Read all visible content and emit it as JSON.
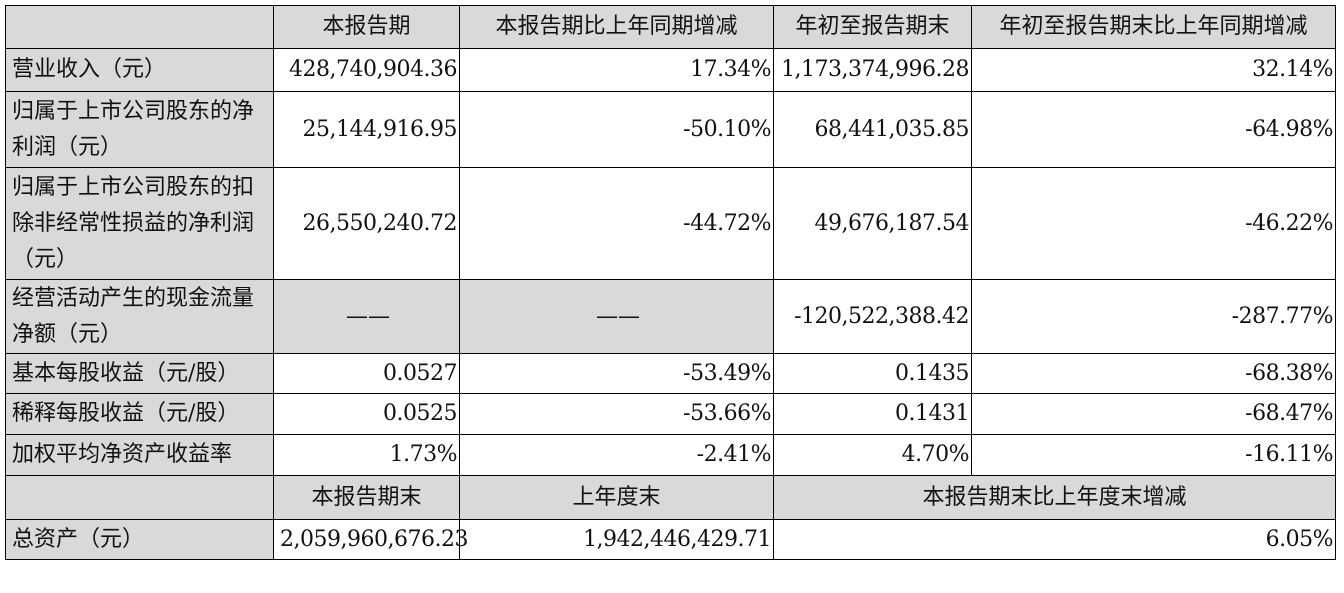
{
  "table": {
    "header": [
      "",
      "本报告期",
      "本报告期比上年同期增减",
      "年初至报告期末",
      "年初至报告期末比上年同期增减"
    ],
    "rows": [
      {
        "label": "营业收入（元）",
        "c1": "428,740,904.36",
        "c2": "17.34%",
        "c3": "1,173,374,996.28",
        "c4": "32.14%"
      },
      {
        "label": "归属于上市公司股东的净利润（元）",
        "c1": "25,144,916.95",
        "c2": "-50.10%",
        "c3": "68,441,035.85",
        "c4": "-64.98%"
      },
      {
        "label": "归属于上市公司股东的扣除非经常性损益的净利润（元）",
        "c1": "26,550,240.72",
        "c2": "-44.72%",
        "c3": "49,676,187.54",
        "c4": "-46.22%"
      },
      {
        "label": "经营活动产生的现金流量净额（元）",
        "c1": "——",
        "c2": "——",
        "c3": "-120,522,388.42",
        "c4": "-287.77%"
      },
      {
        "label": "基本每股收益（元/股）",
        "c1": "0.0527",
        "c2": "-53.49%",
        "c3": "0.1435",
        "c4": "-68.38%"
      },
      {
        "label": "稀释每股收益（元/股）",
        "c1": "0.0525",
        "c2": "-53.66%",
        "c3": "0.1431",
        "c4": "-68.47%"
      },
      {
        "label": "加权平均净资产收益率",
        "c1": "1.73%",
        "c2": "-2.41%",
        "c3": "4.70%",
        "c4": "-16.11%"
      }
    ],
    "header2": [
      "",
      "本报告期末",
      "上年度末",
      "本报告期末比上年度末增减"
    ],
    "asset_row": {
      "label": "总资产（元）",
      "c1": "2,059,960,676.23",
      "c2": "1,942,446,429.71",
      "c3": "6.05%"
    }
  }
}
